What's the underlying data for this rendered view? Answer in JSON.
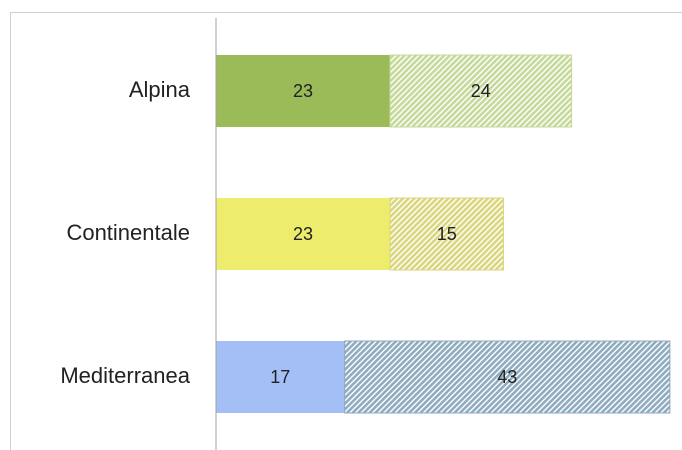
{
  "chart_data": {
    "type": "bar",
    "orientation": "horizontal",
    "stacked": true,
    "categories": [
      "Alpina",
      "Continentale",
      "Mediterranea"
    ],
    "series": [
      {
        "colors": [
          "#9bbb59",
          "#eeec6c",
          "#a4bff5"
        ],
        "hatch": false,
        "values": [
          23,
          23,
          17
        ]
      },
      {
        "colors": [
          "#c5d99a",
          "#d9d67e",
          "#8fabbf"
        ],
        "hatch": true,
        "values": [
          24,
          15,
          43
        ]
      }
    ],
    "xlim": [
      0,
      61.6
    ]
  }
}
